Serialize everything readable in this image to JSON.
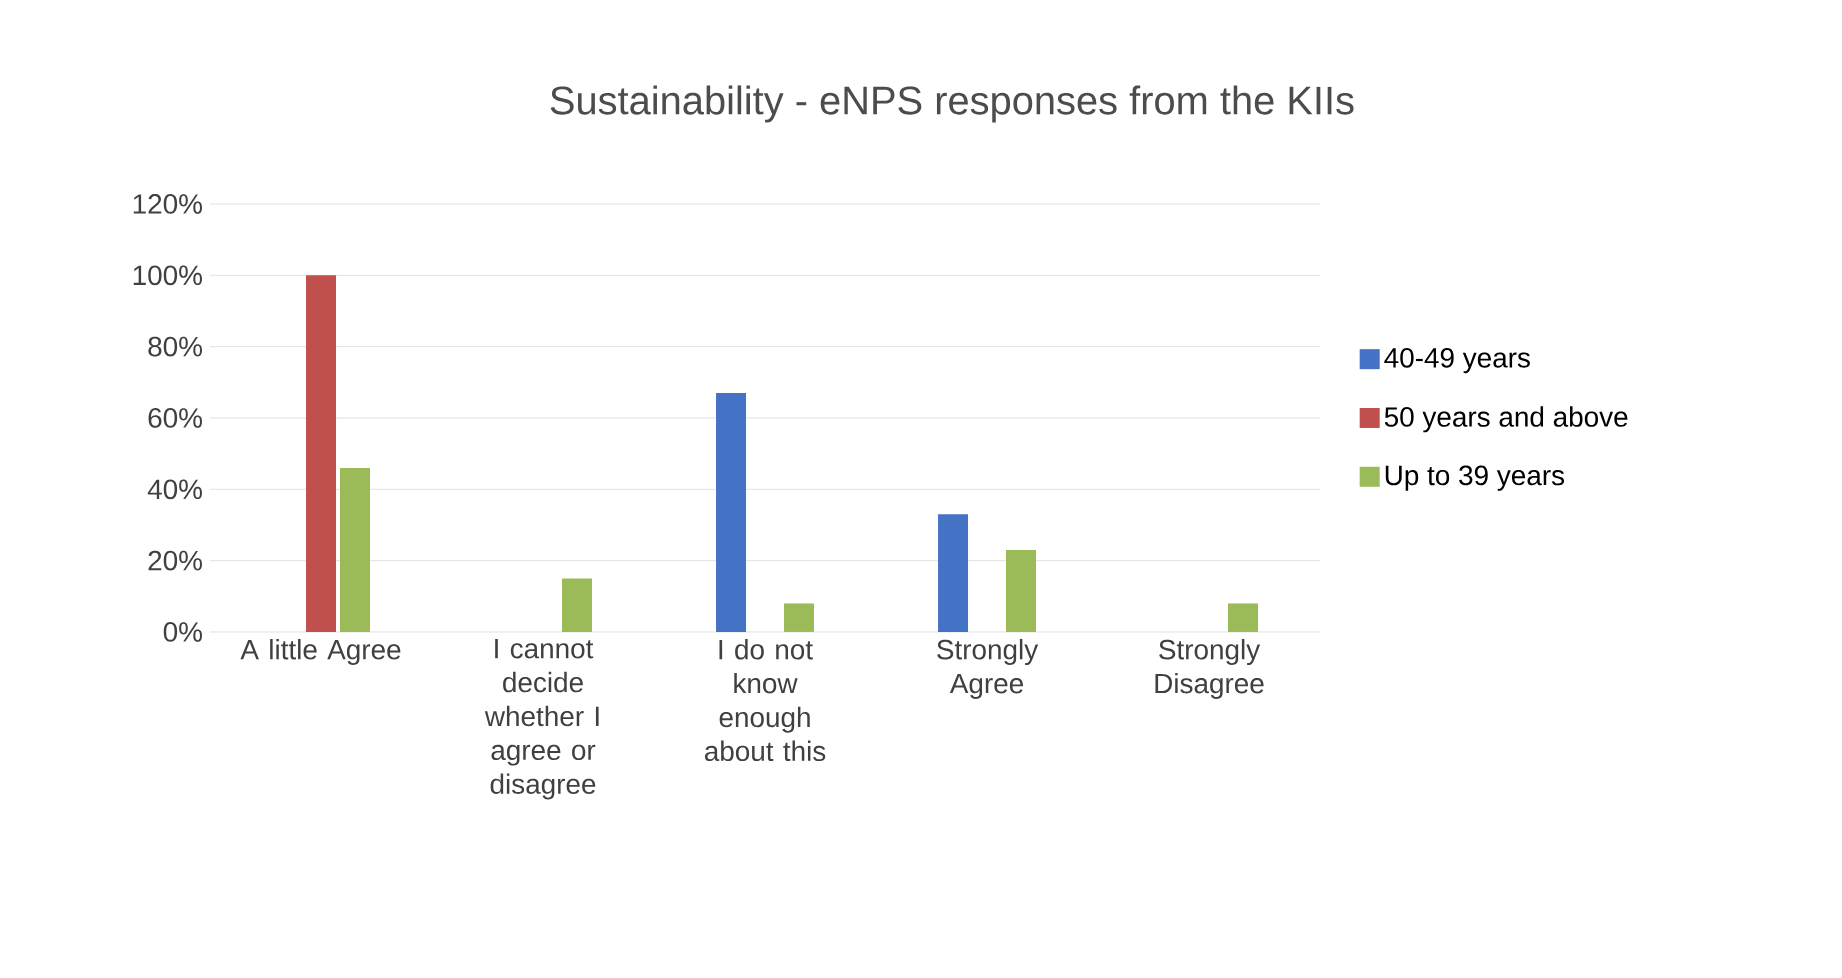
{
  "chart_data": {
    "type": "bar",
    "title": "Sustainability - eNPS responses from the KIIs",
    "categories": [
      "A little Agree",
      "I cannot decide whether I agree or disagree",
      "I do not know enough about this",
      "Strongly Agree",
      "Strongly Disagree"
    ],
    "series": [
      {
        "name": "40-49 years",
        "color": "#4472c4",
        "values": [
          0,
          0,
          67,
          33,
          0
        ]
      },
      {
        "name": "50 years and above",
        "color": "#c0504d",
        "values": [
          100,
          0,
          0,
          0,
          0
        ]
      },
      {
        "name": "Up to 39 years",
        "color": "#9bbb59",
        "values": [
          46,
          15,
          8,
          23,
          8
        ]
      }
    ],
    "ylim": [
      0,
      120
    ],
    "yticks": [
      {
        "value": 0,
        "label": "0%"
      },
      {
        "value": 20,
        "label": "20%"
      },
      {
        "value": 40,
        "label": "40%"
      },
      {
        "value": 60,
        "label": "60%"
      },
      {
        "value": 80,
        "label": "80%"
      },
      {
        "value": 100,
        "label": "100%"
      },
      {
        "value": 120,
        "label": "120%"
      }
    ],
    "grid": "y",
    "legend": "right"
  }
}
